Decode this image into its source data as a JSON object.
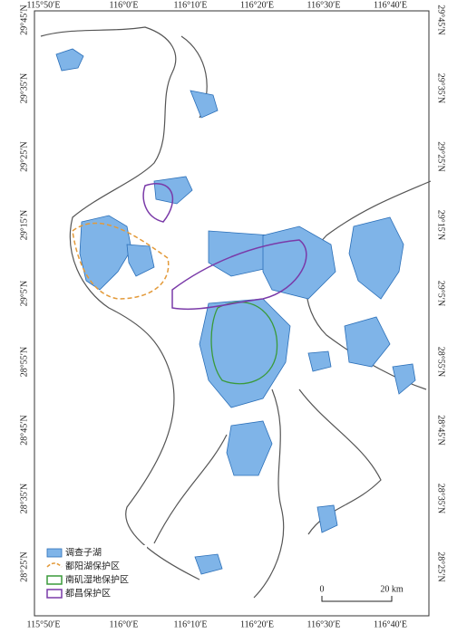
{
  "lon_labels": [
    "115°50′E",
    "116°0′E",
    "116°10′E",
    "116°20′E",
    "116°30′E",
    "116°40′E"
  ],
  "lat_labels": [
    "29°45′N",
    "29°35′N",
    "29°25′N",
    "29°15′N",
    "29°5′N",
    "28°55′N",
    "28°45′N",
    "28°35′N",
    "28°25′N"
  ],
  "legend": [
    {
      "label": "调查子湖"
    },
    {
      "label": "鄱阳湖保护区"
    },
    {
      "label": "南矶湿地保护区"
    },
    {
      "label": "都昌保护区"
    }
  ],
  "scale_bar": {
    "start": "0",
    "end": "20 km"
  }
}
